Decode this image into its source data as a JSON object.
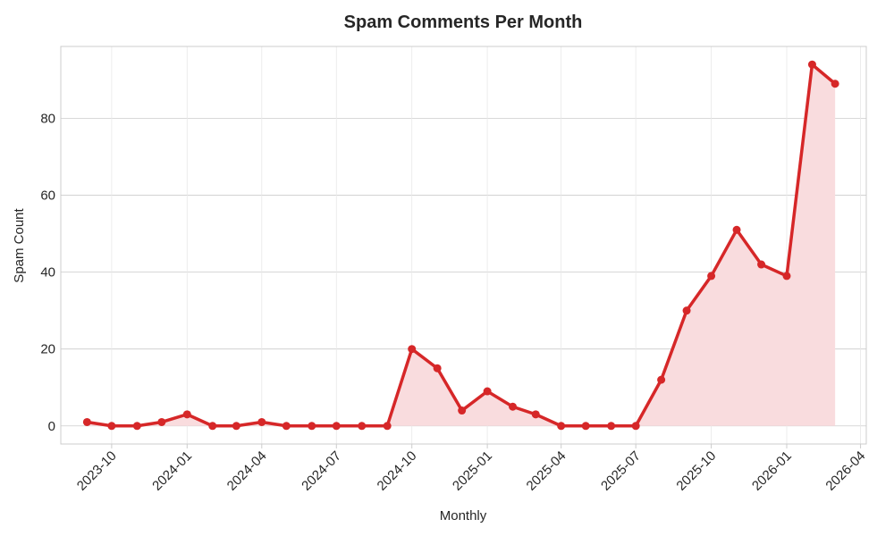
{
  "chart_data": {
    "type": "area",
    "title": "Spam Comments Per Month",
    "xlabel": "Monthly",
    "ylabel": "Spam Count",
    "x": [
      "2023-09-01",
      "2023-10-01",
      "2023-11-01",
      "2023-12-01",
      "2024-01-01",
      "2024-02-01",
      "2024-03-01",
      "2024-04-01",
      "2024-05-01",
      "2024-06-01",
      "2024-07-01",
      "2024-08-01",
      "2024-09-01",
      "2024-10-01",
      "2024-11-01",
      "2024-12-01",
      "2025-01-01",
      "2025-02-01",
      "2025-03-01",
      "2025-04-01",
      "2025-05-01",
      "2025-06-01",
      "2025-07-01",
      "2025-08-01",
      "2025-09-01",
      "2025-10-01",
      "2025-11-01",
      "2025-12-01",
      "2026-01-01",
      "2026-02-01",
      "2026-03-01"
    ],
    "series": [
      {
        "values": [
          1,
          0,
          0,
          1,
          3,
          0,
          0,
          1,
          0,
          0,
          0,
          0,
          0,
          20,
          15,
          4,
          9,
          5,
          3,
          0,
          0,
          0,
          0,
          12,
          30,
          39,
          51,
          42,
          39,
          94,
          89
        ],
        "color": "#d62728",
        "fill_color": "#f9dcde"
      }
    ],
    "xlim": [
      "2023-07-31",
      "2026-04-08"
    ],
    "ylim": [
      -4.7,
      98.7
    ],
    "x_ticks": [
      "2023-10",
      "2024-01",
      "2024-04",
      "2024-07",
      "2024-10",
      "2025-01",
      "2025-04",
      "2025-07",
      "2025-10",
      "2026-01",
      "2026-04"
    ],
    "y_ticks": [
      "0",
      "20",
      "40",
      "60",
      "80"
    ],
    "grid": true,
    "legend": "none"
  }
}
